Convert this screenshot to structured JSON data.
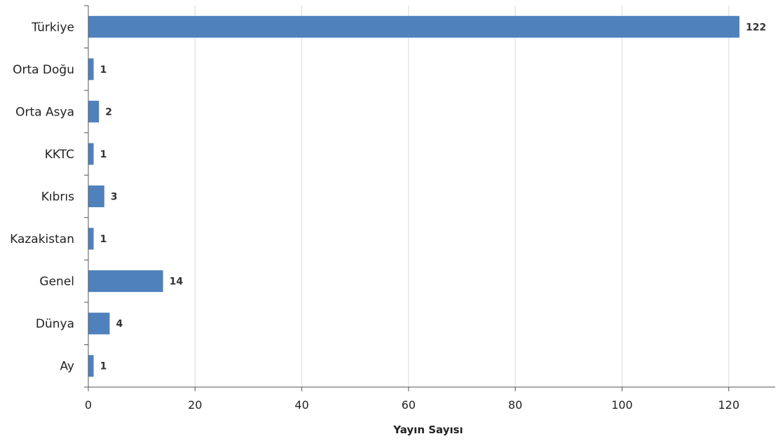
{
  "chart_data": {
    "type": "bar",
    "orientation": "horizontal",
    "categories": [
      "Türkiye",
      "Orta Doğu",
      "Orta Asya",
      "KKTC",
      "Kıbrıs",
      "Kazakistan",
      "Genel",
      "Dünya",
      "Ay"
    ],
    "values": [
      122,
      1,
      2,
      1,
      3,
      1,
      14,
      4,
      1
    ],
    "xlabel": "Yayın Sayısı",
    "ylabel": "",
    "xlim": [
      0,
      128
    ],
    "xticks": [
      0,
      20,
      40,
      60,
      80,
      100,
      120
    ],
    "grid": true,
    "bar_color": "#4f81bd",
    "data_labels": [
      "122",
      "1",
      "2",
      "1",
      "3",
      "1",
      "14",
      "4",
      "1"
    ]
  }
}
